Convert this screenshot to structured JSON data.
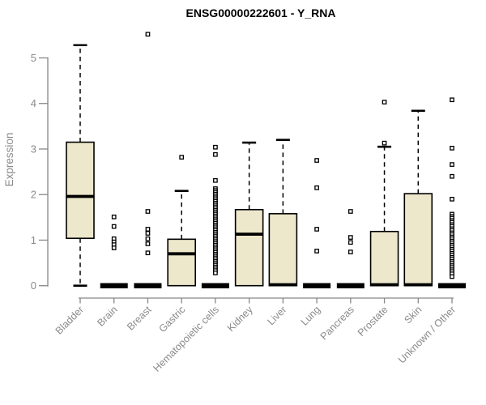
{
  "title": "ENSG00000222601 - Y_RNA",
  "colors": {
    "box_fill": "#EDE7CB",
    "axis_line": "#878787",
    "axis_text": "#8a8a8a",
    "data_ink": "#000000",
    "background": "#ffffff"
  },
  "chart_data": {
    "type": "box",
    "title": "ENSG00000222601 - Y_RNA",
    "xlabel": "",
    "ylabel": "Expression",
    "ylim": [
      0,
      5.6
    ],
    "yticks": [
      0,
      1,
      2,
      3,
      4,
      5
    ],
    "grid": false,
    "legend": "none",
    "categories": [
      "Bladder",
      "Brain",
      "Breast",
      "Gastric",
      "Hematopoietic cells",
      "Kidney",
      "Liver",
      "Lung",
      "Pancreas",
      "Prostate",
      "Skin",
      "Unknown / Other"
    ],
    "series": [
      {
        "name": "Bladder",
        "q1": 1.04,
        "median": 1.96,
        "q3": 3.15,
        "whisker_low": 0,
        "whisker_high": 5.28,
        "outliers": []
      },
      {
        "name": "Brain",
        "q1": 0,
        "median": 0,
        "q3": 0,
        "whisker_low": 0,
        "whisker_high": 0,
        "outliers": [
          1.51,
          1.3,
          1.03,
          0.96,
          0.9,
          0.83
        ]
      },
      {
        "name": "Breast",
        "q1": 0,
        "median": 0,
        "q3": 0,
        "whisker_low": 0,
        "whisker_high": 0,
        "outliers": [
          5.52,
          1.63,
          1.24,
          1.15,
          1.03,
          0.92,
          0.72
        ]
      },
      {
        "name": "Gastric",
        "q1": 0,
        "median": 0.7,
        "q3": 1.02,
        "whisker_low": 0,
        "whisker_high": 2.08,
        "outliers": [
          2.82
        ]
      },
      {
        "name": "Hematopoietic cells",
        "q1": 0,
        "median": 0,
        "q3": 0,
        "whisker_low": 0,
        "whisker_high": 0,
        "outliers": [
          3.04,
          2.88,
          2.31,
          2.13,
          2.09,
          2.05,
          2.01,
          1.97,
          1.93,
          1.89,
          1.85,
          1.81,
          1.77,
          1.73,
          1.69,
          1.65,
          1.61,
          1.57,
          1.53,
          1.49,
          1.45,
          1.41,
          1.37,
          1.33,
          1.29,
          1.25,
          1.21,
          1.17,
          1.13,
          1.09,
          1.05,
          1.01,
          0.97,
          0.93,
          0.89,
          0.85,
          0.81,
          0.77,
          0.73,
          0.69,
          0.65,
          0.61,
          0.57,
          0.53,
          0.49,
          0.45,
          0.41,
          0.37,
          0.33,
          0.28
        ]
      },
      {
        "name": "Kidney",
        "q1": 0,
        "median": 1.13,
        "q3": 1.67,
        "whisker_low": 0,
        "whisker_high": 3.14,
        "outliers": []
      },
      {
        "name": "Liver",
        "q1": 0,
        "median": 0.02,
        "q3": 1.58,
        "whisker_low": 0,
        "whisker_high": 3.2,
        "outliers": []
      },
      {
        "name": "Lung",
        "q1": 0,
        "median": 0,
        "q3": 0,
        "whisker_low": 0,
        "whisker_high": 0,
        "outliers": [
          2.75,
          2.15,
          1.24,
          0.76
        ]
      },
      {
        "name": "Pancreas",
        "q1": 0,
        "median": 0,
        "q3": 0,
        "whisker_low": 0,
        "whisker_high": 0,
        "outliers": [
          1.63,
          1.06,
          0.95,
          0.74
        ]
      },
      {
        "name": "Prostate",
        "q1": 0,
        "median": 0.02,
        "q3": 1.19,
        "whisker_low": 0,
        "whisker_high": 3.05,
        "outliers": [
          4.03,
          3.13
        ]
      },
      {
        "name": "Skin",
        "q1": 0,
        "median": 0.02,
        "q3": 2.02,
        "whisker_low": 0,
        "whisker_high": 3.84,
        "outliers": []
      },
      {
        "name": "Unknown / Other",
        "q1": 0,
        "median": 0,
        "q3": 0,
        "whisker_low": 0,
        "whisker_high": 0,
        "outliers": [
          4.08,
          3.02,
          2.66,
          2.4,
          1.9,
          1.57,
          1.52,
          1.48,
          1.43,
          1.39,
          1.34,
          1.3,
          1.25,
          1.21,
          1.16,
          1.12,
          1.07,
          1.03,
          0.98,
          0.94,
          0.89,
          0.85,
          0.8,
          0.76,
          0.71,
          0.67,
          0.62,
          0.58,
          0.53,
          0.49,
          0.44,
          0.4,
          0.35,
          0.31,
          0.26,
          0.2
        ]
      }
    ]
  }
}
